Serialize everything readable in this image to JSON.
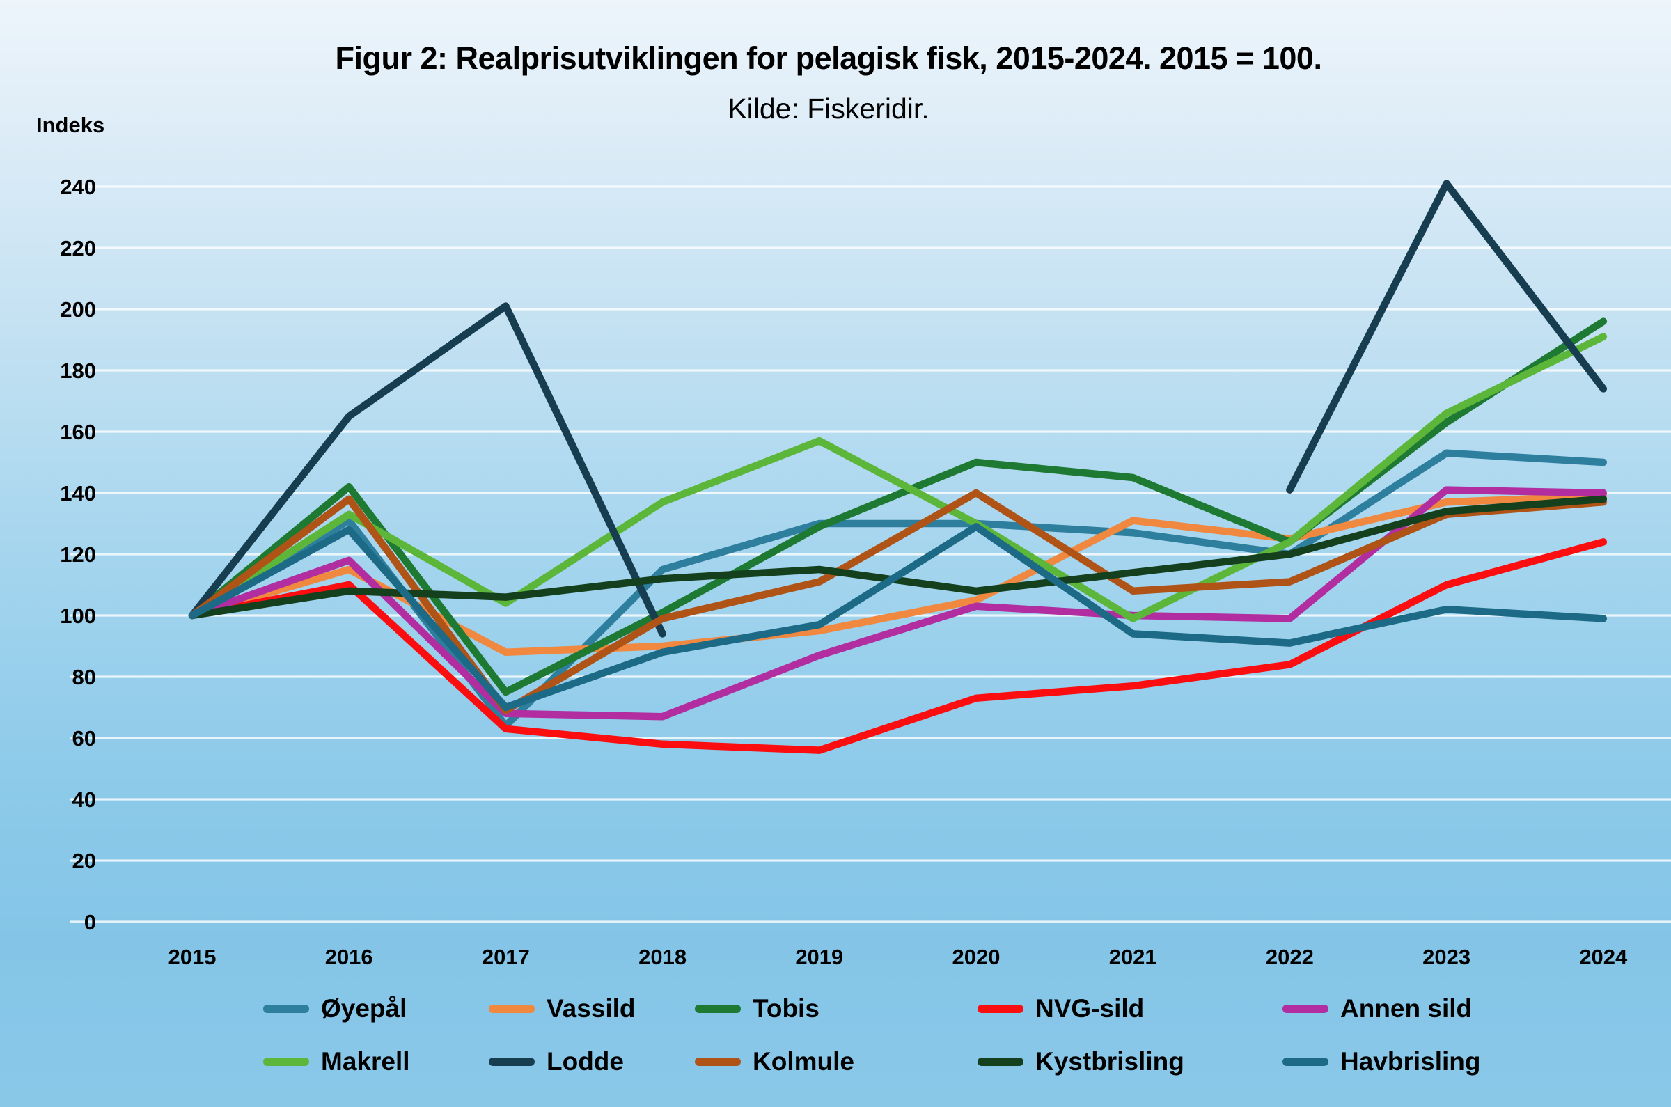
{
  "title": "Figur 2: Realprisutviklingen for pelagisk fisk, 2015-2024. 2015 = 100.",
  "subtitle": "Kilde: Fiskeridir.",
  "y_axis_label": "Indeks",
  "chart_data": {
    "type": "line",
    "x": [
      2015,
      2016,
      2017,
      2018,
      2019,
      2020,
      2021,
      2022,
      2023,
      2024
    ],
    "xlabel": "",
    "ylabel": "Indeks",
    "ylim": [
      0,
      240
    ],
    "ytick_step": 20,
    "grid": "horizontal",
    "legend_position": "bottom",
    "legend_rows": [
      [
        "Øyepål",
        "Vassild",
        "Tobis",
        "NVG-sild",
        "Annen sild"
      ],
      [
        "Makrell",
        "Lodde",
        "Kolmule",
        "Kystbrisling",
        "Havbrisling"
      ]
    ],
    "series": [
      {
        "name": "Øyepål",
        "color": "#2e7f9e",
        "values": [
          100,
          131,
          64,
          115,
          130,
          130,
          127,
          120,
          153,
          150
        ]
      },
      {
        "name": "Vassild",
        "color": "#f08840",
        "values": [
          100,
          115,
          88,
          90,
          95,
          105,
          131,
          125,
          137,
          139
        ]
      },
      {
        "name": "Tobis",
        "color": "#1e7a32",
        "values": [
          100,
          142,
          75,
          101,
          129,
          150,
          145,
          124,
          163,
          196
        ]
      },
      {
        "name": "NVG-sild",
        "color": "#fb0d10",
        "values": [
          100,
          110,
          63,
          58,
          56,
          73,
          77,
          84,
          110,
          124
        ]
      },
      {
        "name": "Annen sild",
        "color": "#b12da0",
        "values": [
          100,
          118,
          68,
          67,
          87,
          103,
          100,
          99,
          141,
          140
        ]
      },
      {
        "name": "Makrell",
        "color": "#5cb63a",
        "values": [
          100,
          133,
          104,
          137,
          157,
          130,
          99,
          124,
          166,
          191
        ]
      },
      {
        "name": "Lodde",
        "color": "#173d50",
        "values": [
          100,
          165,
          201,
          94,
          null,
          null,
          null,
          141,
          241,
          174
        ]
      },
      {
        "name": "Kolmule",
        "color": "#af5316",
        "values": [
          100,
          138,
          69,
          99,
          111,
          140,
          108,
          111,
          133,
          137
        ]
      },
      {
        "name": "Kystbrisling",
        "color": "#15401e",
        "values": [
          100,
          108,
          106,
          112,
          115,
          108,
          114,
          120,
          134,
          138
        ]
      },
      {
        "name": "Havbrisling",
        "color": "#1c6a86",
        "values": [
          100,
          128,
          70,
          88,
          97,
          129,
          94,
          91,
          102,
          99
        ]
      }
    ]
  }
}
